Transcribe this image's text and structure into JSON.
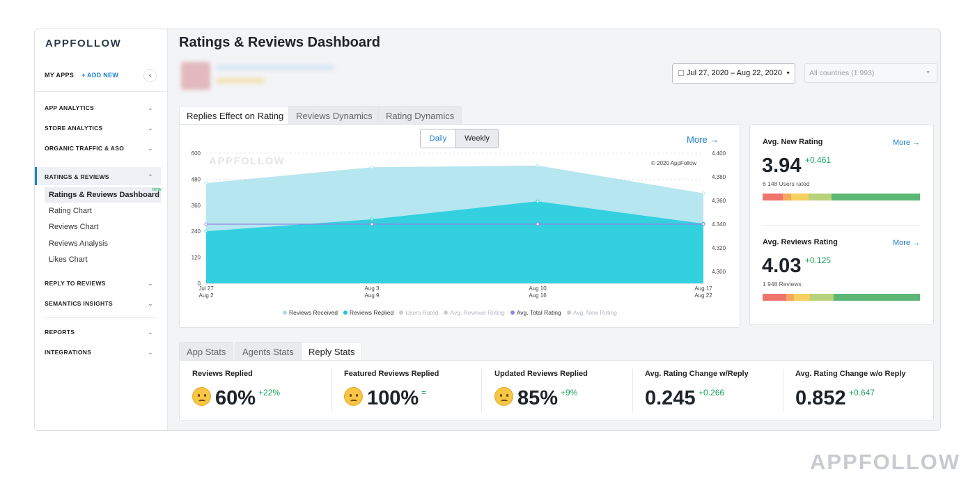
{
  "brand": {
    "logo": "APPFOLLOW",
    "watermark": "APPFOLLOW",
    "accent": "#1d7fd1",
    "positive": "#1aa35a"
  },
  "sidebar": {
    "my_apps": "MY APPS",
    "add_new": "+ ADD NEW",
    "nav": [
      {
        "label": "APP ANALYTICS"
      },
      {
        "label": "STORE ANALYTICS"
      },
      {
        "label": "ORGANIC TRAFFIC & ASO"
      },
      {
        "label": "RATINGS & REVIEWS"
      },
      {
        "label": "REPLY TO REVIEWS"
      },
      {
        "label": "SEMANTICS INSIGHTS"
      },
      {
        "label": "REPORTS"
      },
      {
        "label": "INTEGRATIONS"
      }
    ],
    "sub_items": [
      "Ratings & Reviews Dashboard",
      "Rating Chart",
      "Reviews Chart",
      "Reviews Analysis",
      "Likes Chart"
    ],
    "new_badge": "new"
  },
  "header": {
    "title": "Ratings & Reviews Dashboard",
    "date_range": "Jul 27, 2020 – Aug 22, 2020",
    "country": "All countries (1 993)"
  },
  "chart_tabs": [
    "Replies Effect on Rating",
    "Reviews Dynamics",
    "Rating Dynamics"
  ],
  "toggle": {
    "daily": "Daily",
    "weekly": "Weekly"
  },
  "more": "More →",
  "chart_watermark": "APPFOLLOW",
  "copyright": "© 2020 AppFollow",
  "chart_data": {
    "type": "area",
    "categories": [
      [
        "Jul 27",
        "Aug 2"
      ],
      [
        "Aug 3",
        "Aug 9"
      ],
      [
        "Aug 10",
        "Aug 16"
      ],
      [
        "Aug 17",
        "Aug 22"
      ]
    ],
    "y_left": {
      "ticks": [
        "0",
        "120",
        "240",
        "360",
        "480",
        "600"
      ],
      "range": [
        0,
        600
      ]
    },
    "y_right": {
      "ticks": [
        "4.300",
        "4.320",
        "4.340",
        "4.360",
        "4.380",
        "4.400"
      ],
      "range": [
        4.29,
        4.4
      ]
    },
    "series": [
      {
        "name": "Reviews Received",
        "axis": "left",
        "values": [
          462,
          535,
          543,
          415
        ],
        "color": "#b6e6ef"
      },
      {
        "name": "Reviews Replied",
        "axis": "left",
        "values": [
          240,
          295,
          378,
          275
        ],
        "color": "#33d0e0"
      },
      {
        "name": "Avg. Total Rating",
        "axis": "right",
        "values": [
          4.34,
          4.34,
          4.34,
          4.34
        ],
        "color": "#8e85e0"
      }
    ],
    "legend": [
      {
        "name": "Reviews Received",
        "color": "#a9dde8",
        "muted": false
      },
      {
        "name": "Reviews Replied",
        "color": "#27c4d9",
        "muted": false
      },
      {
        "name": "Users Rated",
        "color": "#c8ccd1",
        "muted": true
      },
      {
        "name": "Avg. Reviews Rating",
        "color": "#c8ccd1",
        "muted": true
      },
      {
        "name": "Avg. Total Rating",
        "color": "#8e85e0",
        "muted": false
      },
      {
        "name": "Avg. New Rating",
        "color": "#c8ccd1",
        "muted": true
      }
    ]
  },
  "rating_cards": [
    {
      "label": "Avg. New Rating",
      "value": "3.94",
      "delta": "+0.461",
      "note": "6 148 Users rated",
      "more": "More →",
      "bar": [
        0.13,
        0.05,
        0.11,
        0.15,
        0.56
      ]
    },
    {
      "label": "Avg. Reviews Rating",
      "value": "4.03",
      "delta": "+0.125",
      "note": "1 948 Reviews",
      "more": "More →",
      "bar": [
        0.15,
        0.05,
        0.1,
        0.15,
        0.55
      ]
    }
  ],
  "bar_colors": [
    "#f0746e",
    "#f6a85f",
    "#f6cf5d",
    "#b7d27a",
    "#5cb774"
  ],
  "stats_tabs": [
    "App Stats",
    "Agents Stats",
    "Reply Stats"
  ],
  "stats": [
    {
      "label": "Reviews Replied",
      "value": "60%",
      "delta": "+22%",
      "emoji": "confused-face-icon"
    },
    {
      "label": "Featured Reviews Replied",
      "value": "100%",
      "delta": "=",
      "emoji": "star-struck-face-icon"
    },
    {
      "label": "Updated Reviews Replied",
      "value": "85%",
      "delta": "+9%",
      "emoji": "smiling-face-icon"
    },
    {
      "label": "Avg. Rating Change w/Reply",
      "value": "0.245",
      "delta": "+0.266"
    },
    {
      "label": "Avg. Rating Change w/o Reply",
      "value": "0.852",
      "delta": "+0.647"
    }
  ]
}
